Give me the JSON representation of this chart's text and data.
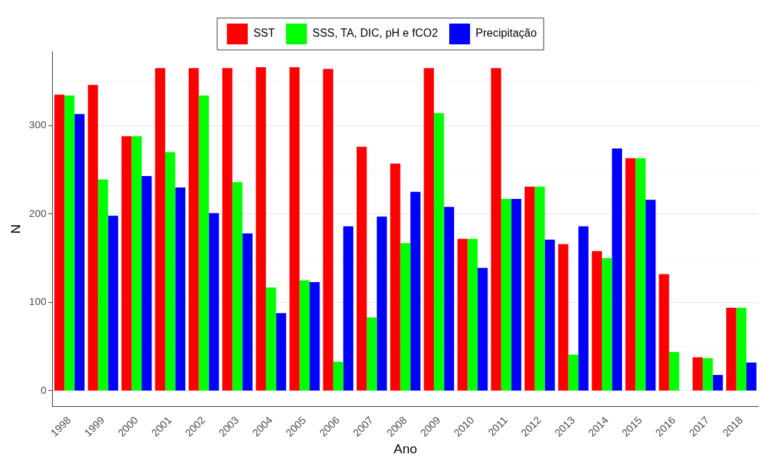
{
  "chart_data": {
    "type": "bar",
    "xlabel": "Ano",
    "ylabel": "N",
    "categories": [
      "1998",
      "1999",
      "2000",
      "2001",
      "2002",
      "2003",
      "2004",
      "2005",
      "2006",
      "2007",
      "2008",
      "2009",
      "2010",
      "2011",
      "2012",
      "2013",
      "2014",
      "2015",
      "2016",
      "2017",
      "2018"
    ],
    "series": [
      {
        "name": "SST",
        "color": "#ff0000",
        "values": [
          335,
          346,
          288,
          365,
          365,
          365,
          366,
          366,
          364,
          276,
          257,
          365,
          172,
          365,
          231,
          166,
          158,
          263,
          132,
          38,
          94
        ]
      },
      {
        "name": "SSS, TA, DIC, pH e fCO2",
        "color": "#00ff00",
        "values": [
          334,
          239,
          288,
          270,
          334,
          236,
          117,
          125,
          33,
          83,
          167,
          314,
          172,
          217,
          231,
          41,
          150,
          263,
          44,
          37,
          94
        ]
      },
      {
        "name": "Precipitação",
        "color": "#0000ff",
        "values": [
          313,
          198,
          243,
          230,
          201,
          178,
          88,
          123,
          186,
          197,
          225,
          208,
          139,
          217,
          171,
          186,
          274,
          216,
          null,
          18,
          32
        ]
      }
    ],
    "ylim": [
      -18,
      384
    ],
    "yticks": [
      0,
      {
        "value": 50,
        "label": null
      },
      100,
      {
        "value": 150,
        "label": null
      },
      200,
      {
        "value": 250,
        "label": null
      },
      300,
      {
        "value": 350,
        "label": null
      }
    ],
    "grid": "y",
    "legend": "top"
  }
}
